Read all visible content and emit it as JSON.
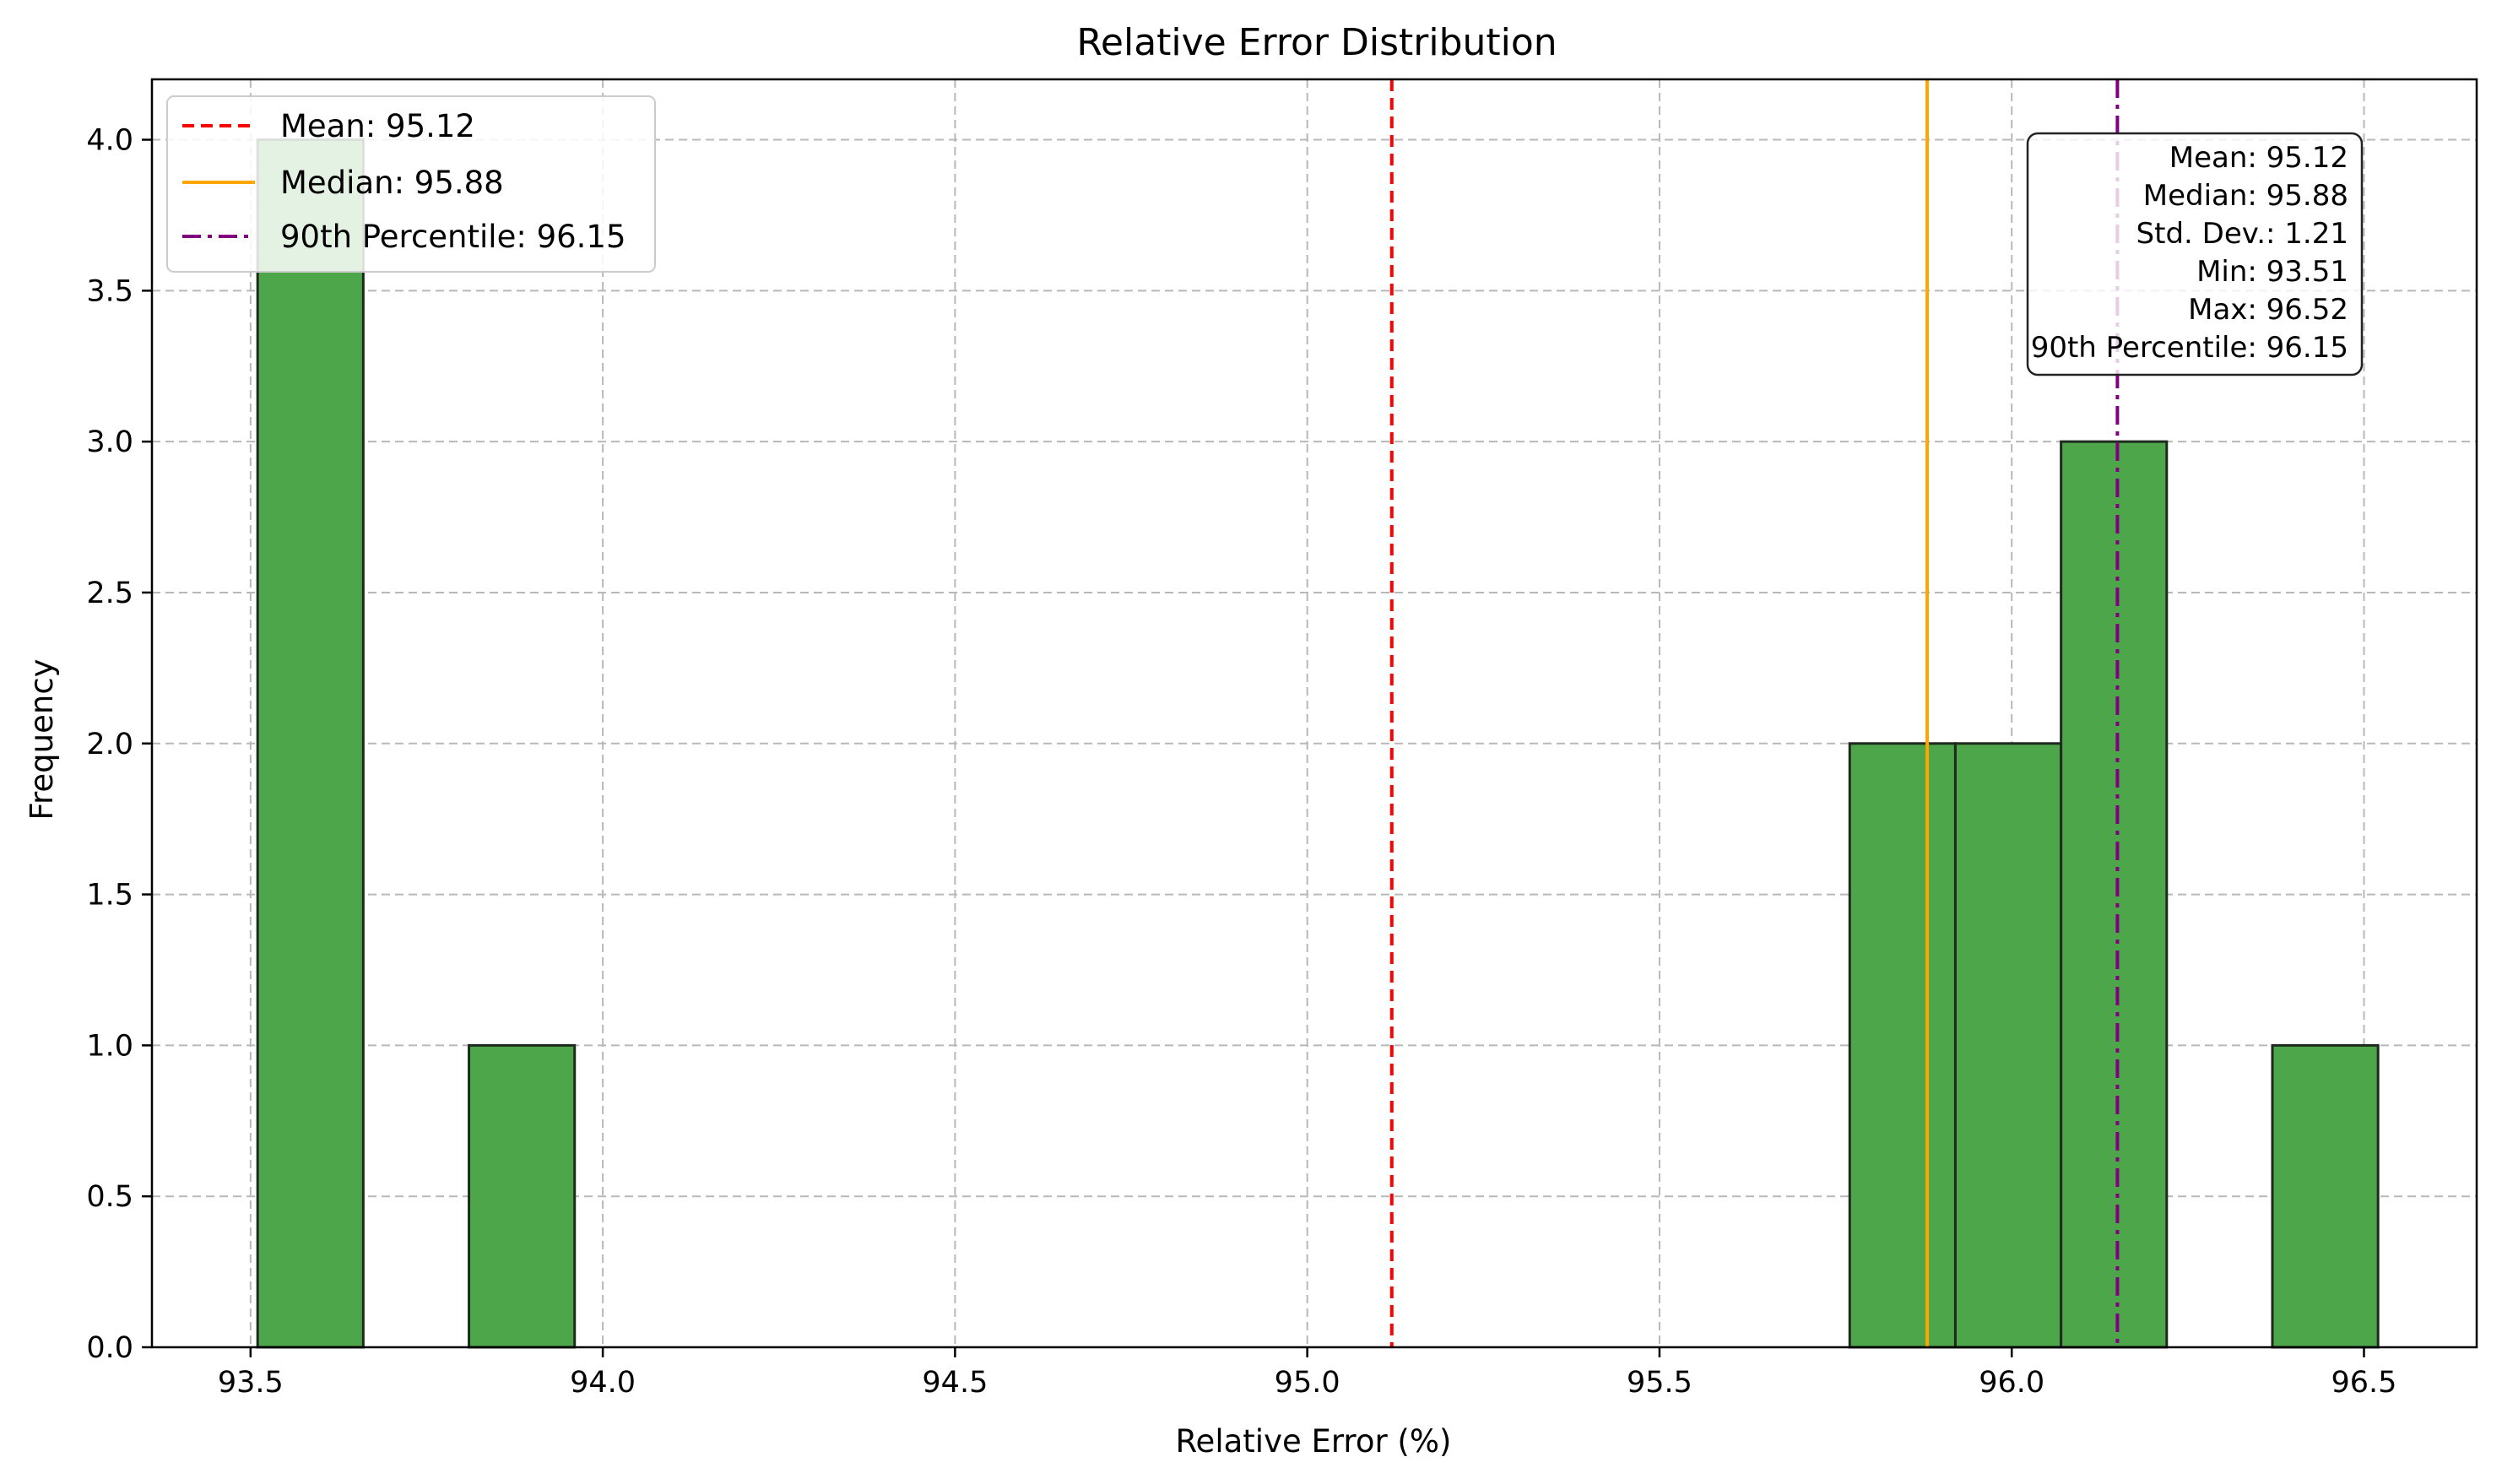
{
  "chart_data": {
    "type": "bar",
    "title": "Relative Error Distribution",
    "xlabel": "Relative Error (%)",
    "ylabel": "Frequency",
    "xlim": [
      93.36,
      96.66
    ],
    "ylim": [
      0,
      4.2
    ],
    "xticks": [
      93.5,
      94.0,
      94.5,
      95.0,
      95.5,
      96.0,
      96.5
    ],
    "xtick_labels": [
      "93.5",
      "94.0",
      "94.5",
      "95.0",
      "95.5",
      "96.0",
      "96.5"
    ],
    "yticks": [
      0,
      0.5,
      1.0,
      1.5,
      2.0,
      2.5,
      3.0,
      3.5,
      4.0
    ],
    "ytick_labels": [
      "0.0",
      "0.5",
      "1.0",
      "1.5",
      "2.0",
      "2.5",
      "3.0",
      "3.5",
      "4.0"
    ],
    "grid": true,
    "legend_position": "top-left",
    "bins": [
      {
        "x0": 93.51,
        "x1": 93.66,
        "count": 4
      },
      {
        "x0": 93.81,
        "x1": 93.96,
        "count": 1
      },
      {
        "x0": 95.77,
        "x1": 95.92,
        "count": 2
      },
      {
        "x0": 95.92,
        "x1": 96.07,
        "count": 2
      },
      {
        "x0": 96.07,
        "x1": 96.22,
        "count": 3
      },
      {
        "x0": 96.37,
        "x1": 96.52,
        "count": 1
      }
    ],
    "bar_color": "#4da64a",
    "bar_edge_color": "#1f2a1f",
    "reference_lines": [
      {
        "label": "Mean: 95.12",
        "value": 95.12,
        "color": "#ff0000",
        "style": "dashed"
      },
      {
        "label": "Median: 95.88",
        "value": 95.88,
        "color": "#ffa500",
        "style": "solid"
      },
      {
        "label": "90th Percentile: 96.15",
        "value": 96.15,
        "color": "#800080",
        "style": "dashdot"
      }
    ],
    "stats_box": {
      "position": "top-right",
      "lines": [
        "Mean: 95.12",
        "Median: 95.88",
        "Std. Dev.: 1.21",
        "Min: 93.51",
        "Max: 96.52",
        "90th Percentile: 96.15"
      ]
    }
  }
}
